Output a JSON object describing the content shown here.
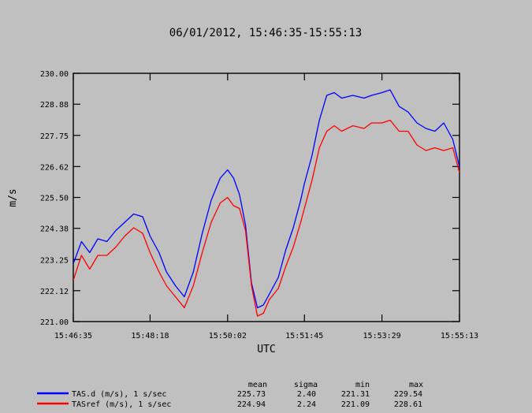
{
  "chart_data": {
    "type": "line",
    "title": "06/01/2012, 15:46:35-15:55:13",
    "xlabel": "UTC",
    "ylabel": "m/s",
    "xlim": [
      "15:46:35",
      "15:55:13"
    ],
    "ylim": [
      221.0,
      230.0
    ],
    "x_ticks": [
      "15:46:35",
      "15:48:18",
      "15:50:02",
      "15:51:45",
      "15:53:29",
      "15:55:13"
    ],
    "y_ticks": [
      "221.00",
      "222.12",
      "223.25",
      "224.38",
      "225.50",
      "226.62",
      "227.75",
      "228.88",
      "230.00"
    ],
    "grid": false,
    "legend_placement": "bottom",
    "stats_headers": [
      "mean",
      "sigma",
      "min",
      "max"
    ],
    "series": [
      {
        "name": "TAS.d (m/s), 1 s/sec",
        "color": "#0000ff",
        "mean": "225.73",
        "sigma": "2.40",
        "min": "221.31",
        "max": "229.54",
        "points": [
          [
            "15:46:35",
            223.1
          ],
          [
            "15:46:46",
            223.9
          ],
          [
            "15:46:57",
            223.5
          ],
          [
            "15:47:08",
            224.0
          ],
          [
            "15:47:20",
            223.9
          ],
          [
            "15:47:32",
            224.3
          ],
          [
            "15:47:44",
            224.6
          ],
          [
            "15:47:56",
            224.9
          ],
          [
            "15:48:08",
            224.8
          ],
          [
            "15:48:18",
            224.1
          ],
          [
            "15:48:30",
            223.5
          ],
          [
            "15:48:40",
            222.8
          ],
          [
            "15:48:52",
            222.3
          ],
          [
            "15:49:04",
            221.9
          ],
          [
            "15:49:16",
            222.8
          ],
          [
            "15:49:28",
            224.2
          ],
          [
            "15:49:40",
            225.4
          ],
          [
            "15:49:52",
            226.2
          ],
          [
            "15:50:02",
            226.5
          ],
          [
            "15:50:10",
            226.2
          ],
          [
            "15:50:18",
            225.6
          ],
          [
            "15:50:26",
            224.5
          ],
          [
            "15:50:34",
            222.4
          ],
          [
            "15:50:42",
            221.5
          ],
          [
            "15:50:50",
            221.6
          ],
          [
            "15:50:58",
            222.0
          ],
          [
            "15:51:10",
            222.6
          ],
          [
            "15:51:20",
            223.6
          ],
          [
            "15:51:30",
            224.4
          ],
          [
            "15:51:40",
            225.4
          ],
          [
            "15:51:45",
            226.0
          ],
          [
            "15:51:55",
            227.0
          ],
          [
            "15:52:05",
            228.3
          ],
          [
            "15:52:15",
            229.2
          ],
          [
            "15:52:25",
            229.3
          ],
          [
            "15:52:35",
            229.1
          ],
          [
            "15:52:50",
            229.2
          ],
          [
            "15:53:05",
            229.1
          ],
          [
            "15:53:15",
            229.2
          ],
          [
            "15:53:29",
            229.3
          ],
          [
            "15:53:40",
            229.4
          ],
          [
            "15:53:52",
            228.8
          ],
          [
            "15:54:04",
            228.6
          ],
          [
            "15:54:16",
            228.2
          ],
          [
            "15:54:28",
            228.0
          ],
          [
            "15:54:40",
            227.9
          ],
          [
            "15:54:52",
            228.2
          ],
          [
            "15:55:04",
            227.6
          ],
          [
            "15:55:13",
            226.6
          ]
        ]
      },
      {
        "name": "TASref (m/s), 1 s/sec",
        "color": "#ff0000",
        "mean": "224.94",
        "sigma": "2.24",
        "min": "221.09",
        "max": "228.61",
        "points": [
          [
            "15:46:35",
            222.5
          ],
          [
            "15:46:46",
            223.4
          ],
          [
            "15:46:57",
            222.9
          ],
          [
            "15:47:08",
            223.4
          ],
          [
            "15:47:20",
            223.4
          ],
          [
            "15:47:32",
            223.7
          ],
          [
            "15:47:44",
            224.1
          ],
          [
            "15:47:56",
            224.4
          ],
          [
            "15:48:08",
            224.2
          ],
          [
            "15:48:18",
            223.5
          ],
          [
            "15:48:30",
            222.8
          ],
          [
            "15:48:40",
            222.3
          ],
          [
            "15:48:52",
            221.9
          ],
          [
            "15:49:04",
            221.5
          ],
          [
            "15:49:16",
            222.3
          ],
          [
            "15:49:28",
            223.5
          ],
          [
            "15:49:40",
            224.6
          ],
          [
            "15:49:52",
            225.3
          ],
          [
            "15:50:02",
            225.5
          ],
          [
            "15:50:10",
            225.2
          ],
          [
            "15:50:18",
            225.1
          ],
          [
            "15:50:26",
            224.3
          ],
          [
            "15:50:34",
            222.3
          ],
          [
            "15:50:42",
            221.2
          ],
          [
            "15:50:50",
            221.3
          ],
          [
            "15:50:58",
            221.8
          ],
          [
            "15:51:10",
            222.2
          ],
          [
            "15:51:20",
            223.0
          ],
          [
            "15:51:30",
            223.7
          ],
          [
            "15:51:40",
            224.6
          ],
          [
            "15:51:45",
            225.1
          ],
          [
            "15:51:55",
            226.1
          ],
          [
            "15:52:05",
            227.3
          ],
          [
            "15:52:15",
            227.9
          ],
          [
            "15:52:25",
            228.1
          ],
          [
            "15:52:35",
            227.9
          ],
          [
            "15:52:50",
            228.1
          ],
          [
            "15:53:05",
            228.0
          ],
          [
            "15:53:15",
            228.2
          ],
          [
            "15:53:29",
            228.2
          ],
          [
            "15:53:40",
            228.3
          ],
          [
            "15:53:52",
            227.9
          ],
          [
            "15:54:04",
            227.9
          ],
          [
            "15:54:16",
            227.4
          ],
          [
            "15:54:28",
            227.2
          ],
          [
            "15:54:40",
            227.3
          ],
          [
            "15:54:52",
            227.2
          ],
          [
            "15:55:04",
            227.3
          ],
          [
            "15:55:13",
            226.4
          ]
        ]
      }
    ]
  }
}
